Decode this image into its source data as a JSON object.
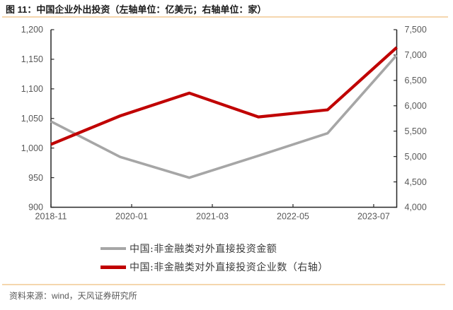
{
  "title": "图 11：中国企业外出投资（左轴单位：亿美元；右轴单位：家）",
  "source_note": "资料来源：wind，天风证券研究所",
  "colors": {
    "accent_rule": "#f5d6ae",
    "axis": "#262626",
    "tick_label": "#595959",
    "line_amount": "#a6a6a6",
    "line_count": "#c00000"
  },
  "chart_data": {
    "type": "line",
    "title": "中国企业外出投资",
    "left_axis_unit": "亿美元",
    "right_axis_unit": "家",
    "grid": false,
    "legend_position": "bottom",
    "left_axis": {
      "min": 900,
      "max": 1200,
      "step": 50,
      "tick_labels": [
        "900",
        "950",
        "1,000",
        "1,050",
        "1,100",
        "1,150",
        "1,200"
      ]
    },
    "right_axis": {
      "min": 4000,
      "max": 7500,
      "step": 500,
      "tick_labels": [
        "4,000",
        "4,500",
        "5,000",
        "5,500",
        "6,000",
        "6,500",
        "7,000",
        "7,500"
      ]
    },
    "x_axis": {
      "range_months": [
        0,
        60
      ],
      "tick_positions_months": [
        0,
        14,
        28,
        42,
        56
      ],
      "tick_labels": [
        "2018-11",
        "2020-01",
        "2021-03",
        "2022-05",
        "2023-07"
      ]
    },
    "series": [
      {
        "name": "中国:非金融类对外直接投资金额",
        "axis": "left",
        "color": "#a6a6a6",
        "x_months": [
          0,
          12,
          24,
          36,
          48,
          60
        ],
        "values": [
          1045,
          985,
          950,
          987,
          1025,
          1157
        ]
      },
      {
        "name": "中国:非金融类对外直接投资企业数（右轴）",
        "axis": "right",
        "color": "#c00000",
        "x_months": [
          0,
          12,
          24,
          36,
          48,
          60
        ],
        "values": [
          5240,
          5800,
          6250,
          5780,
          5920,
          7150
        ]
      }
    ]
  }
}
